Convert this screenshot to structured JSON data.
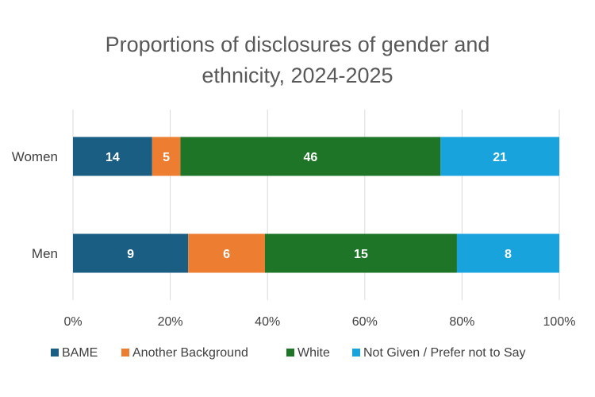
{
  "chart_data": {
    "type": "bar",
    "orientation": "horizontal",
    "stacked": "percent",
    "title": "Proportions of disclosures of gender and ethnicity, 2024-2025",
    "title_lines": [
      "Proportions of disclosures of gender and",
      "ethnicity, 2024-2025"
    ],
    "categories": [
      "Women",
      "Men"
    ],
    "series": [
      {
        "name": "BAME",
        "values": [
          14,
          9
        ],
        "color": "#1b5e83"
      },
      {
        "name": "Another Background",
        "values": [
          5,
          6
        ],
        "color": "#ed7d31"
      },
      {
        "name": "White",
        "values": [
          46,
          15
        ],
        "color": "#1e7427"
      },
      {
        "name": "Not Given / Prefer not to Say",
        "values": [
          21,
          8
        ],
        "color": "#18a3dc"
      }
    ],
    "x_ticks": [
      "0%",
      "20%",
      "40%",
      "60%",
      "80%",
      "100%"
    ],
    "xlim": [
      0,
      100
    ],
    "grid": true,
    "legend_position": "bottom"
  }
}
